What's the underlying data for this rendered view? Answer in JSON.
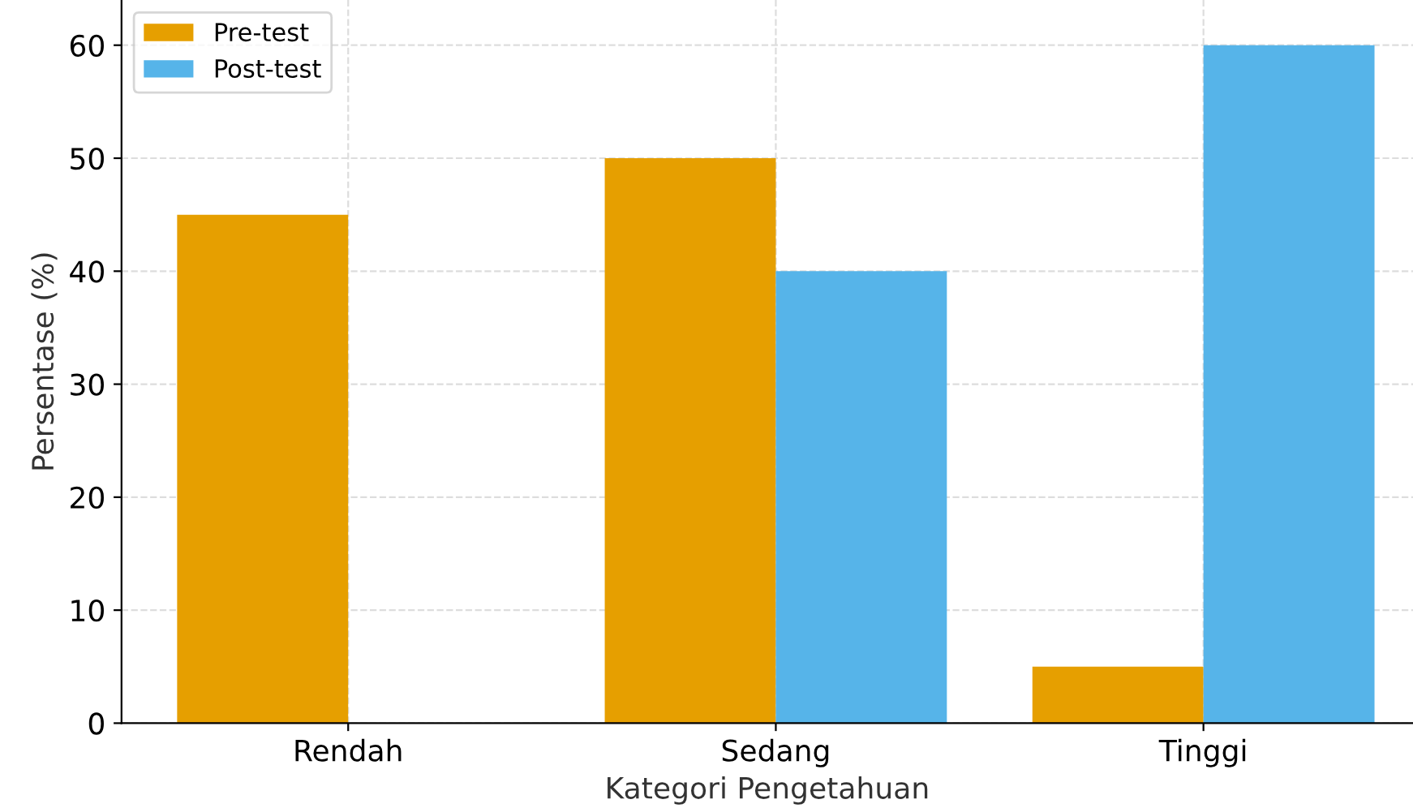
{
  "chart_data": {
    "type": "bar",
    "xlabel": "Kategori Pengetahuan",
    "ylabel": "Persentase (%)",
    "categories": [
      "Rendah",
      "Sedang",
      "Tinggi"
    ],
    "series": [
      {
        "name": "Pre-test",
        "color": "#e69f00",
        "values": [
          45,
          50,
          5
        ]
      },
      {
        "name": "Post-test",
        "color": "#56b4e9",
        "values": [
          0,
          40,
          60
        ]
      }
    ],
    "ylim": [
      0,
      64
    ],
    "yticks": [
      0,
      10,
      20,
      30,
      40,
      50,
      60
    ],
    "grid": true,
    "legend": "top left"
  }
}
